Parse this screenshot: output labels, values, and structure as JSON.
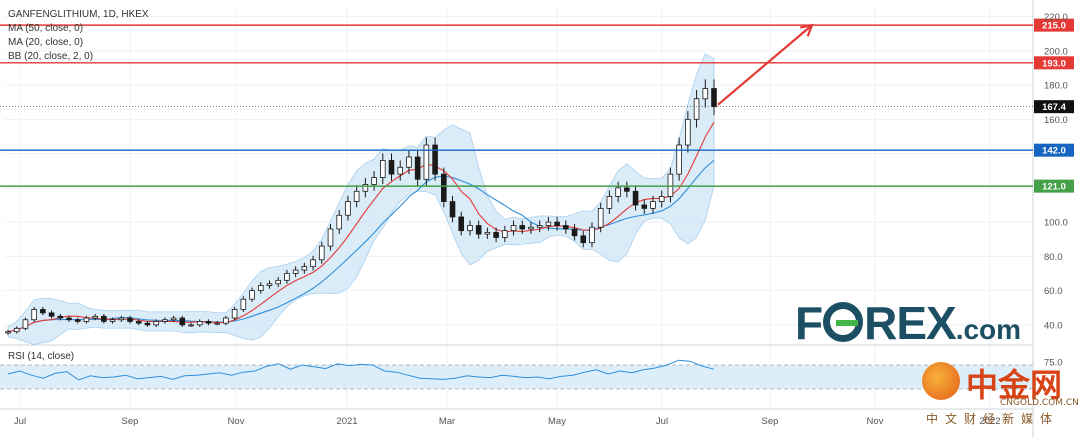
{
  "legend": {
    "symbol": "GANFENGLITHIUM, 1D, HKEX",
    "ma50": "MA (50, close, 0)",
    "ma20": "MA (20, close, 0)",
    "bb": "BB (20, close, 2, 0)",
    "rsi": "RSI (14, close)"
  },
  "brand": {
    "name_a": "F",
    "name_b": "REX",
    "suffix": ".com"
  },
  "watermark": {
    "cn_big": "中金网",
    "cn_url": "CNGOLD.COM.CN",
    "cn_small": "中文财经新媒体"
  },
  "colors": {
    "candles": "#1a1a1a",
    "ma_red": "#e53935",
    "ma_blue": "#2f8fd8",
    "bb_fill": "#cfe6f7",
    "level_red": "#e53935",
    "level_blue": "#1565c0",
    "level_green": "#43a047",
    "arrow": "#e53935",
    "rsi_line": "#2f8fd8",
    "rsi_fill": "#ddeefb"
  },
  "chart_data": {
    "type": "candlestick",
    "price_ylim": [
      30,
      225
    ],
    "price_ticks": [
      40.0,
      60.0,
      80.0,
      100.0,
      120.0,
      140.0,
      160.0,
      180.0,
      200.0,
      220.0
    ],
    "x_labels": [
      "Jul",
      "Sep",
      "Nov",
      "2021",
      "Mar",
      "May",
      "Jul",
      "Sep",
      "Nov",
      "2022"
    ],
    "horizontal_levels": [
      {
        "value": 215.0,
        "label": "215.0",
        "color": "#e53935"
      },
      {
        "value": 193.0,
        "label": "193.0",
        "color": "#e53935"
      },
      {
        "value": 142.0,
        "label": "142.0",
        "color": "#1565c0"
      },
      {
        "value": 121.0,
        "label": "121.0",
        "color": "#43a047"
      }
    ],
    "last_price": {
      "value": 167.4,
      "label": "167.4"
    },
    "arrow": {
      "from_bar": 0,
      "from_price": 167.4,
      "to_month": "Sep",
      "to_price": 215
    },
    "close": [
      36,
      38,
      43,
      49,
      47,
      45,
      44,
      43,
      42,
      44,
      45,
      42,
      43,
      44,
      42,
      41,
      40,
      42,
      43,
      44,
      40,
      40,
      42,
      41,
      41,
      44,
      49,
      55,
      60,
      63,
      64,
      66,
      70,
      72,
      74,
      78,
      86,
      96,
      104,
      112,
      118,
      122,
      126,
      136,
      128,
      132,
      138,
      125,
      145,
      128,
      112,
      103,
      95,
      98,
      93,
      94,
      91,
      95,
      98,
      96,
      97,
      98,
      100,
      98,
      96,
      92,
      88,
      97,
      108,
      115,
      120,
      118,
      110,
      108,
      112,
      115,
      128,
      145,
      160,
      172,
      178,
      167.4
    ],
    "rsi": [
      55,
      60,
      53,
      48,
      56,
      59,
      45,
      52,
      49,
      50,
      53,
      47,
      49,
      51,
      46,
      52,
      53,
      55,
      57,
      53,
      58,
      60,
      68,
      72,
      63,
      70,
      67,
      64,
      72,
      69,
      71,
      70,
      60,
      58,
      53,
      48,
      47,
      46,
      48,
      52,
      50,
      49,
      53,
      51,
      49,
      50,
      47,
      51,
      53,
      58,
      62,
      55,
      60,
      57,
      62,
      65,
      70,
      78,
      76,
      68,
      63
    ],
    "rsi_overbought": 70,
    "rsi_oversold": 30,
    "rsi_ticks": [
      75.0
    ]
  }
}
